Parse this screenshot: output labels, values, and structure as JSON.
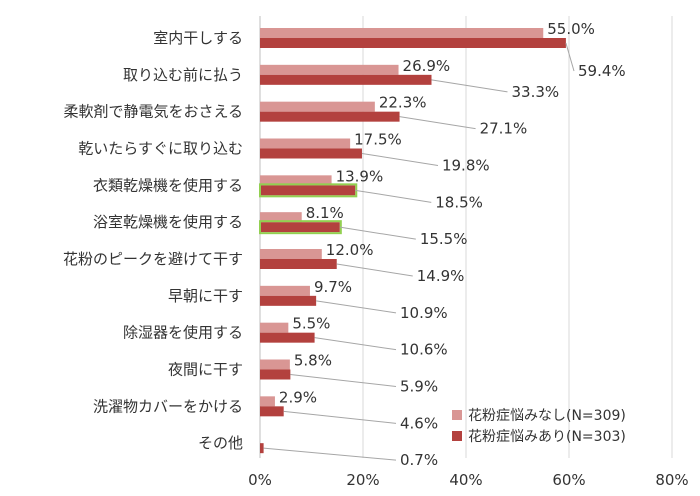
{
  "chart_data": {
    "type": "bar",
    "orientation": "horizontal",
    "categories": [
      "室内干しする",
      "取り込む前に払う",
      "柔軟剤で静電気をおさえる",
      "乾いたらすぐに取り込む",
      "衣類乾燥機を使用する",
      "浴室乾燥機を使用する",
      "花粉のピークを避けて干す",
      "早朝に干す",
      "除湿器を使用する",
      "夜間に干す",
      "洗濯物カバーをかける",
      "その他"
    ],
    "series": [
      {
        "name": "花粉症悩みなし(N=309)",
        "color": "#d99694",
        "values": [
          55.0,
          26.9,
          22.3,
          17.5,
          13.9,
          8.1,
          12.0,
          9.7,
          5.5,
          5.8,
          2.9,
          0
        ],
        "labels": [
          "55.0%",
          "26.9%",
          "22.3%",
          "17.5%",
          "13.9%",
          "8.1%",
          "12.0%",
          "9.7%",
          "5.5%",
          "5.8%",
          "2.9%",
          ""
        ]
      },
      {
        "name": "花粉症悩みあり(N=303)",
        "color": "#b3413e",
        "values": [
          59.4,
          33.3,
          27.1,
          19.8,
          18.5,
          15.5,
          14.9,
          10.9,
          10.6,
          5.9,
          4.6,
          0.7
        ],
        "labels": [
          "59.4%",
          "33.3%",
          "27.1%",
          "19.8%",
          "18.5%",
          "15.5%",
          "14.9%",
          "10.9%",
          "10.6%",
          "5.9%",
          "4.6%",
          "0.7%"
        ]
      }
    ],
    "highlighted_categories": [
      "衣類乾燥機を使用する",
      "浴室乾燥機を使用する"
    ],
    "highlight_color": "#92d050",
    "xlim": [
      0,
      80
    ],
    "xticks": [
      "0%",
      "20%",
      "40%",
      "60%",
      "80%"
    ],
    "grid": true,
    "legend_position": "bottom-right"
  }
}
